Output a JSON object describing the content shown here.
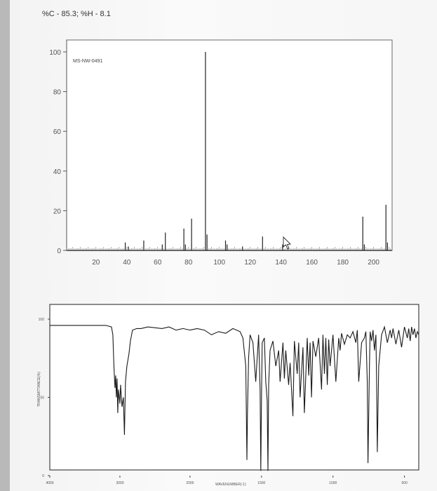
{
  "header": {
    "composition": "%C - 85.3; %H - 8.1"
  },
  "chart_data": [
    {
      "type": "bar",
      "subtype": "mass-spectrum",
      "annotation": "MS-NW-0491",
      "xlim": [
        1,
        212
      ],
      "ylim": [
        0,
        100
      ],
      "x_ticks": [
        20,
        40,
        60,
        80,
        100,
        120,
        140,
        160,
        180,
        200
      ],
      "y_ticks": [
        0,
        20,
        40,
        60,
        80,
        100
      ],
      "grid": false,
      "peaks": [
        {
          "mz": 39,
          "intensity": 4
        },
        {
          "mz": 41,
          "intensity": 2
        },
        {
          "mz": 51,
          "intensity": 5
        },
        {
          "mz": 63,
          "intensity": 3
        },
        {
          "mz": 65,
          "intensity": 9
        },
        {
          "mz": 77,
          "intensity": 11
        },
        {
          "mz": 78,
          "intensity": 3
        },
        {
          "mz": 82,
          "intensity": 16
        },
        {
          "mz": 91,
          "intensity": 100
        },
        {
          "mz": 92,
          "intensity": 8
        },
        {
          "mz": 104,
          "intensity": 5
        },
        {
          "mz": 105,
          "intensity": 3
        },
        {
          "mz": 115,
          "intensity": 2
        },
        {
          "mz": 128,
          "intensity": 7
        },
        {
          "mz": 141,
          "intensity": 3
        },
        {
          "mz": 193,
          "intensity": 17
        },
        {
          "mz": 194,
          "intensity": 3
        },
        {
          "mz": 208,
          "intensity": 23
        },
        {
          "mz": 209,
          "intensity": 4
        }
      ]
    },
    {
      "type": "line",
      "subtype": "ir-spectrum",
      "xlabel": "WAVENUMBER(-1)",
      "ylabel": "TRANSMITTANCE(%)",
      "x_reversed": true,
      "xlim": [
        4000,
        400
      ],
      "ylim": [
        0,
        100
      ],
      "x_ticks": [
        4000,
        3000,
        2000,
        1500,
        1000,
        500
      ],
      "y_ticks": [
        0,
        50,
        100
      ],
      "x_tick_labels": [
        "4000",
        "3000",
        "2000",
        "1500",
        "1000",
        "500"
      ],
      "y_tick_labels": [
        "0",
        "50",
        "100"
      ],
      "series": [
        {
          "x": [
            4000,
            3600,
            3200,
            3120,
            3100,
            3085,
            3070,
            3060,
            3050,
            3040,
            3030,
            3020,
            3000,
            2990,
            2970,
            2950,
            2935,
            2920,
            2900,
            2870,
            2850,
            2820,
            2760,
            2700,
            2600,
            2400,
            2300,
            2200,
            2100,
            2000,
            1950,
            1900,
            1850,
            1800,
            1750,
            1700,
            1650,
            1630,
            1610,
            1602,
            1598,
            1590,
            1580,
            1560,
            1540,
            1520,
            1510,
            1505,
            1500,
            1495,
            1480,
            1470,
            1460,
            1455,
            1450,
            1440,
            1420,
            1400,
            1380,
            1370,
            1350,
            1340,
            1330,
            1310,
            1300,
            1280,
            1270,
            1250,
            1240,
            1230,
            1210,
            1200,
            1180,
            1170,
            1160,
            1150,
            1140,
            1120,
            1100,
            1080,
            1070,
            1060,
            1050,
            1040,
            1030,
            1020,
            1000,
            980,
            960,
            950,
            940,
            920,
            900,
            880,
            860,
            840,
            830,
            820,
            800,
            780,
            770,
            760,
            755,
            750,
            745,
            740,
            730,
            720,
            710,
            700,
            695,
            690,
            680,
            660,
            640,
            620,
            600,
            590,
            580,
            560,
            540,
            520,
            500,
            480,
            470,
            460,
            450,
            440,
            430,
            420,
            410,
            400
          ],
          "y": [
            96,
            96,
            96,
            95,
            90,
            70,
            56,
            64,
            50,
            62,
            40,
            55,
            46,
            58,
            44,
            50,
            26,
            60,
            70,
            78,
            86,
            93,
            94,
            94,
            95,
            94,
            95,
            93,
            94,
            93,
            94,
            93,
            90,
            92,
            91,
            94,
            92,
            88,
            70,
            10,
            40,
            75,
            90,
            85,
            60,
            90,
            55,
            3,
            50,
            85,
            88,
            60,
            48,
            3,
            58,
            80,
            86,
            70,
            80,
            60,
            85,
            62,
            80,
            58,
            72,
            38,
            86,
            65,
            85,
            50,
            82,
            40,
            88,
            64,
            85,
            50,
            86,
            76,
            88,
            55,
            90,
            65,
            88,
            58,
            87,
            70,
            90,
            60,
            88,
            80,
            91,
            84,
            90,
            88,
            92,
            85,
            93,
            60,
            85,
            88,
            92,
            60,
            8,
            40,
            70,
            92,
            86,
            93,
            80,
            90,
            60,
            15,
            70,
            90,
            95,
            85,
            93,
            88,
            94,
            84,
            93,
            82,
            95,
            88,
            94,
            86,
            95,
            90,
            94,
            88,
            92,
            90
          ]
        }
      ]
    }
  ]
}
